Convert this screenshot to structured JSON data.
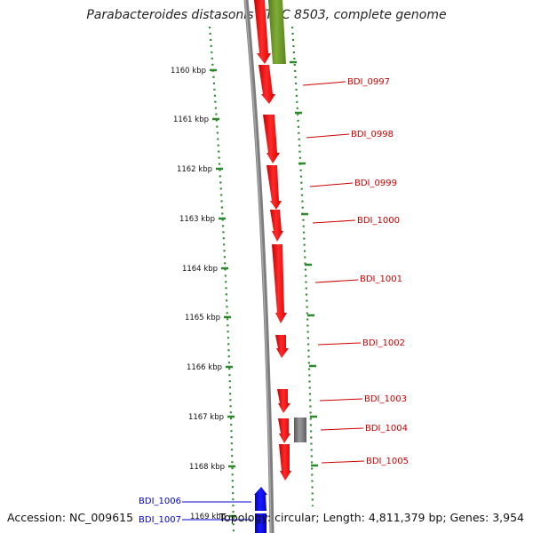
{
  "title": "Parabacteroides distasonis ATCC 8503, complete genome",
  "footer": {
    "accession": "Accession: NC_009615",
    "summary": "Topology: circular; Length: 4,811,379 bp; Genes: 3,954"
  },
  "colors": {
    "forward_gene": "#ff0000",
    "reverse_gene": "#0000ff",
    "other_gene_olive": "#6f9a2a",
    "other_gene_gray": "#7a7a7a",
    "backbone": "#808080",
    "tick": "#2a8a2a",
    "label_forward": "#cc0000",
    "label_reverse": "#0000cc"
  },
  "ruler": {
    "ticks": [
      {
        "label": "1160 kbp"
      },
      {
        "label": "1161 kbp"
      },
      {
        "label": "1162 kbp"
      },
      {
        "label": "1163 kbp"
      },
      {
        "label": "1164 kbp"
      },
      {
        "label": "1165 kbp"
      },
      {
        "label": "1166 kbp"
      },
      {
        "label": "1167 kbp"
      },
      {
        "label": "1168 kbp"
      },
      {
        "label": "1169 kbp"
      }
    ]
  },
  "genes": [
    {
      "name": "BDI_0997",
      "strand": "forward"
    },
    {
      "name": "BDI_0998",
      "strand": "forward"
    },
    {
      "name": "BDI_0999",
      "strand": "forward"
    },
    {
      "name": "BDI_1000",
      "strand": "forward"
    },
    {
      "name": "BDI_1001",
      "strand": "forward"
    },
    {
      "name": "BDI_1002",
      "strand": "forward"
    },
    {
      "name": "BDI_1003",
      "strand": "forward"
    },
    {
      "name": "BDI_1004",
      "strand": "forward"
    },
    {
      "name": "BDI_1005",
      "strand": "forward"
    },
    {
      "name": "BDI_1006",
      "strand": "reverse"
    },
    {
      "name": "BDI_1007",
      "strand": "reverse"
    }
  ]
}
